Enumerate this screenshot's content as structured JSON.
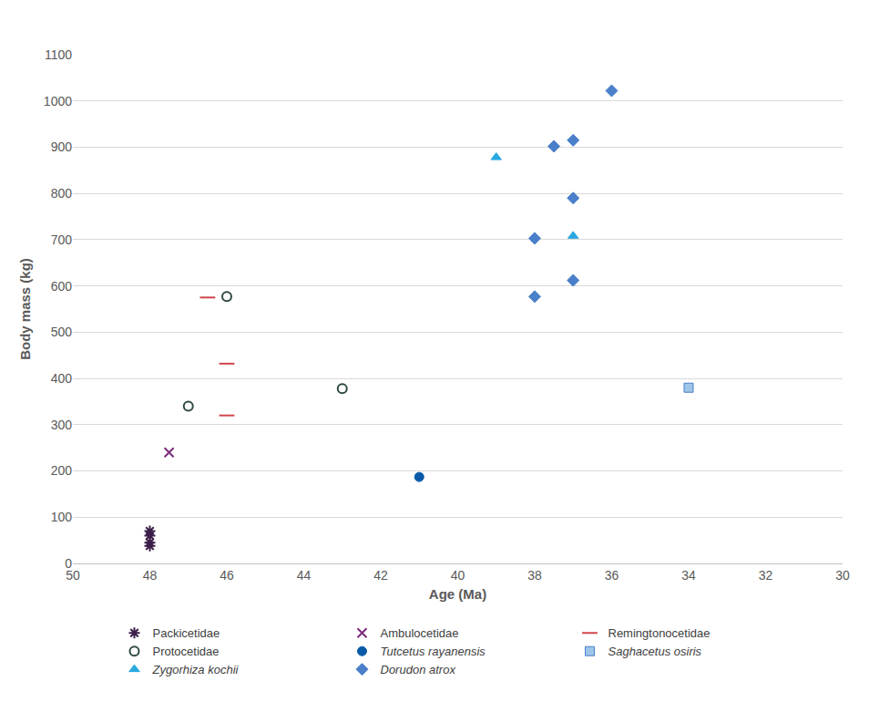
{
  "chart_data": {
    "type": "scatter",
    "x_label": "Age (Ma)",
    "y_label": "Body mass (kg)",
    "xlim": [
      50,
      30
    ],
    "xticks": [
      50,
      48,
      46,
      44,
      42,
      40,
      38,
      36,
      34,
      32,
      30
    ],
    "ylim": [
      0,
      1100
    ],
    "yticks": [
      0,
      100,
      200,
      300,
      400,
      500,
      600,
      700,
      800,
      900,
      1000,
      1100
    ],
    "grid": true,
    "legend": "bottom",
    "series": [
      {
        "name": "Packicetidae",
        "color": "#3b1f4a",
        "marker": "asterisk",
        "x": [
          48,
          48,
          48,
          48
        ],
        "values": [
          70,
          60,
          45,
          38
        ]
      },
      {
        "name": "Ambulocetidae",
        "color": "#7b2a7d",
        "marker": "x",
        "x": [
          47.5
        ],
        "values": [
          240
        ]
      },
      {
        "name": "Remingtonocetidae",
        "color": "#d0464a",
        "marker": "dash",
        "x": [
          46.5,
          46,
          46
        ],
        "values": [
          575,
          432,
          320
        ]
      },
      {
        "name": "Protocetidae",
        "color": "#2f4a3e",
        "marker": "circle-open",
        "x": [
          46,
          47,
          43
        ],
        "values": [
          577,
          340,
          378
        ]
      },
      {
        "name": "Tutcetus rayanensis",
        "color": "#0b5aa8",
        "marker": "circle",
        "x": [
          41
        ],
        "values": [
          187
        ]
      },
      {
        "name": "Saghacetus osiris",
        "color": "#9ec5e8",
        "marker": "square",
        "x": [
          34
        ],
        "values": [
          380
        ]
      },
      {
        "name": "Zygorhiza kochii",
        "color": "#29a8e0",
        "marker": "triangle",
        "x": [
          39,
          37
        ],
        "values": [
          878,
          708
        ]
      },
      {
        "name": "Dorudon atrox",
        "color": "#4a7fc9",
        "marker": "diamond",
        "x": [
          36,
          37.5,
          37,
          37,
          38,
          37,
          38
        ],
        "values": [
          1022,
          902,
          915,
          790,
          703,
          612,
          577
        ]
      }
    ]
  }
}
